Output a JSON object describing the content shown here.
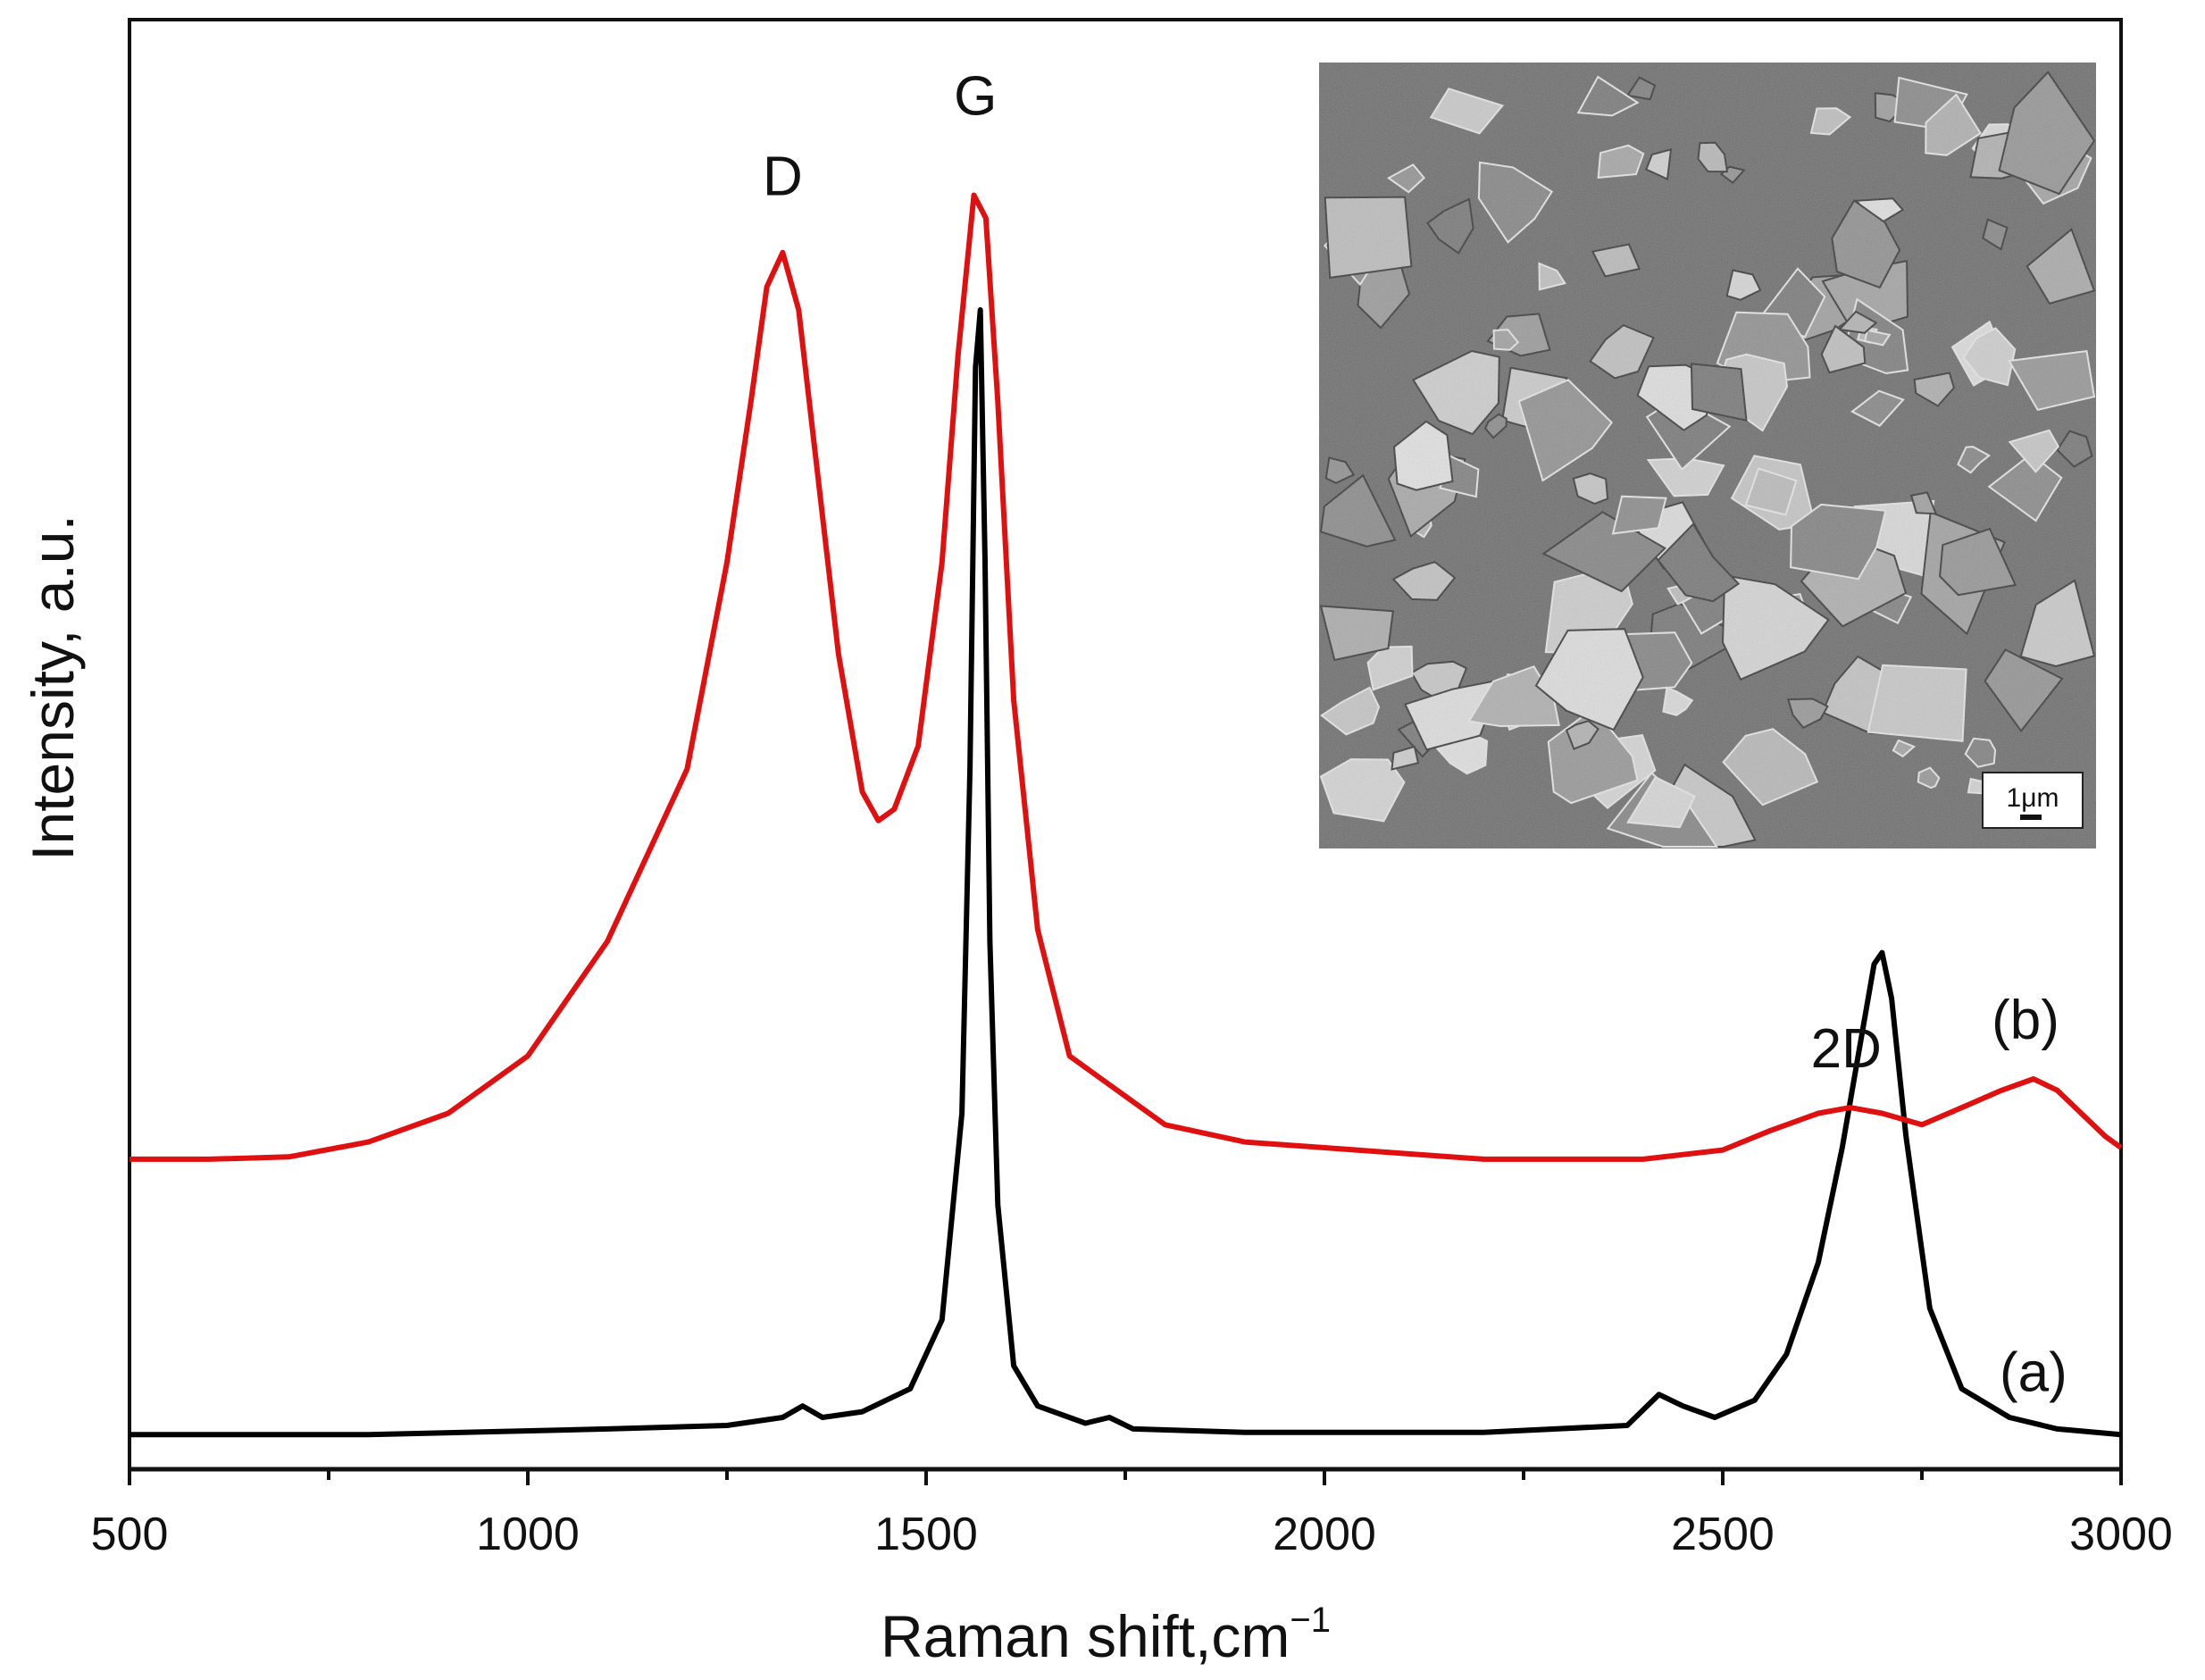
{
  "chart_data": {
    "type": "line",
    "title": "",
    "xlabel": "Raman shift,cm",
    "xlabel_superscript": "−1",
    "ylabel": "Intensity, a.u.",
    "xlim": [
      500,
      3000
    ],
    "xticks": [
      500,
      1000,
      1500,
      2000,
      2500,
      3000
    ],
    "x_minor_step": 250,
    "y_ticks_shown": false,
    "grid": false,
    "series": [
      {
        "name": "(a)",
        "color": "#000000",
        "baseline": 0.02,
        "x": [
          500,
          800,
          1100,
          1250,
          1320,
          1345,
          1370,
          1420,
          1480,
          1520,
          1545,
          1555,
          1562,
          1568,
          1574,
          1580,
          1590,
          1610,
          1640,
          1700,
          1730,
          1760,
          1900,
          2200,
          2380,
          2420,
          2450,
          2490,
          2540,
          2580,
          2620,
          2650,
          2670,
          2690,
          2700,
          2712,
          2730,
          2760,
          2800,
          2860,
          2920,
          3000
        ],
        "y": [
          0.02,
          0.02,
          0.025,
          0.028,
          0.035,
          0.045,
          0.035,
          0.04,
          0.06,
          0.12,
          0.3,
          0.6,
          0.95,
          1.0,
          0.78,
          0.45,
          0.22,
          0.08,
          0.045,
          0.03,
          0.035,
          0.025,
          0.022,
          0.022,
          0.028,
          0.055,
          0.045,
          0.035,
          0.05,
          0.09,
          0.17,
          0.27,
          0.35,
          0.43,
          0.44,
          0.4,
          0.28,
          0.13,
          0.06,
          0.035,
          0.025,
          0.02
        ]
      },
      {
        "name": "(b)",
        "color": "#e01010",
        "baseline": 0.26,
        "x": [
          500,
          600,
          700,
          800,
          900,
          1000,
          1100,
          1200,
          1250,
          1280,
          1300,
          1320,
          1340,
          1360,
          1390,
          1420,
          1440,
          1460,
          1490,
          1520,
          1540,
          1560,
          1575,
          1590,
          1610,
          1640,
          1680,
          1720,
          1760,
          1800,
          1900,
          2000,
          2100,
          2200,
          2300,
          2400,
          2500,
          2560,
          2620,
          2660,
          2700,
          2750,
          2800,
          2850,
          2890,
          2920,
          2950,
          2980,
          3000
        ],
        "y": [
          0.26,
          0.26,
          0.262,
          0.275,
          0.3,
          0.35,
          0.45,
          0.6,
          0.78,
          0.92,
          1.02,
          1.05,
          1.0,
          0.88,
          0.7,
          0.58,
          0.555,
          0.565,
          0.62,
          0.78,
          0.96,
          1.1,
          1.08,
          0.92,
          0.66,
          0.46,
          0.35,
          0.33,
          0.31,
          0.29,
          0.275,
          0.27,
          0.265,
          0.26,
          0.26,
          0.26,
          0.268,
          0.285,
          0.3,
          0.305,
          0.3,
          0.29,
          0.305,
          0.32,
          0.33,
          0.32,
          0.3,
          0.28,
          0.27
        ]
      }
    ],
    "annotations": [
      {
        "text": "D",
        "x": 1320,
        "y": 1.1
      },
      {
        "text": "G",
        "x": 1562,
        "y": 1.17
      },
      {
        "text": "2D",
        "x": 2655,
        "y": 0.34
      },
      {
        "text": "(b)",
        "x": 2880,
        "y": 0.365
      },
      {
        "text": "(a)",
        "x": 2890,
        "y": 0.058
      }
    ],
    "ylim": [
      0,
      1.2
    ],
    "inset": {
      "kind": "SEM micrograph",
      "scale_bar_label": "1μm"
    }
  }
}
